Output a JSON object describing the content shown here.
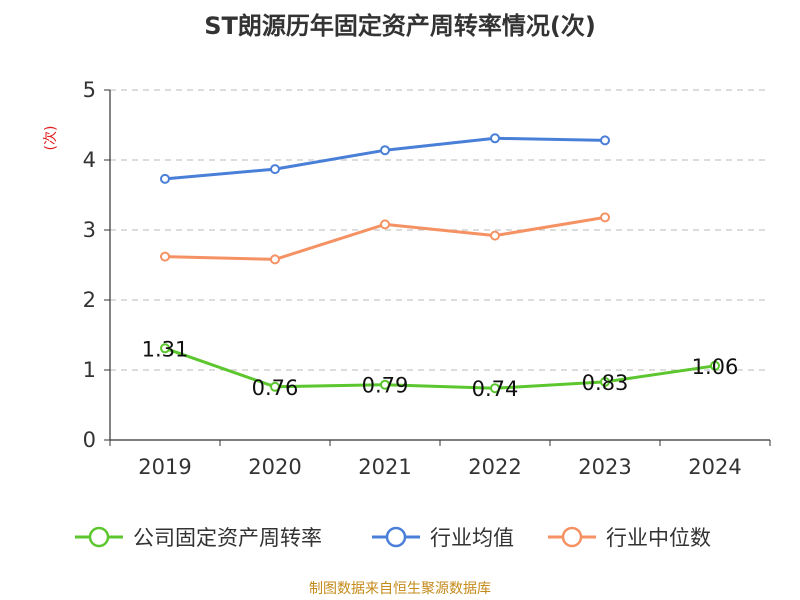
{
  "title": "ST朗源历年固定资产周转率情况(次)",
  "unit_label": "(次)",
  "source": "制图数据来自恒生聚源数据库",
  "chart_data": {
    "type": "line",
    "categories": [
      "2019",
      "2020",
      "2021",
      "2022",
      "2023",
      "2024"
    ],
    "y_ticks": [
      "0",
      "1",
      "2",
      "3",
      "4",
      "5"
    ],
    "ylim": [
      0,
      5
    ],
    "grid": true,
    "legend_position": "bottom",
    "series": [
      {
        "name": "公司固定资产周转率",
        "color": "#5cc62e",
        "values": [
          1.31,
          0.76,
          0.79,
          0.74,
          0.83,
          1.06
        ],
        "labels": [
          "1.31",
          "0.76",
          "0.79",
          "0.74",
          "0.83",
          "1.06"
        ]
      },
      {
        "name": "行业均值",
        "color": "#4a7fd8",
        "values": [
          3.73,
          3.87,
          4.14,
          4.31,
          4.28,
          null
        ]
      },
      {
        "name": "行业中位数",
        "color": "#f59263",
        "values": [
          2.62,
          2.58,
          3.08,
          2.92,
          3.18,
          null
        ]
      }
    ]
  }
}
